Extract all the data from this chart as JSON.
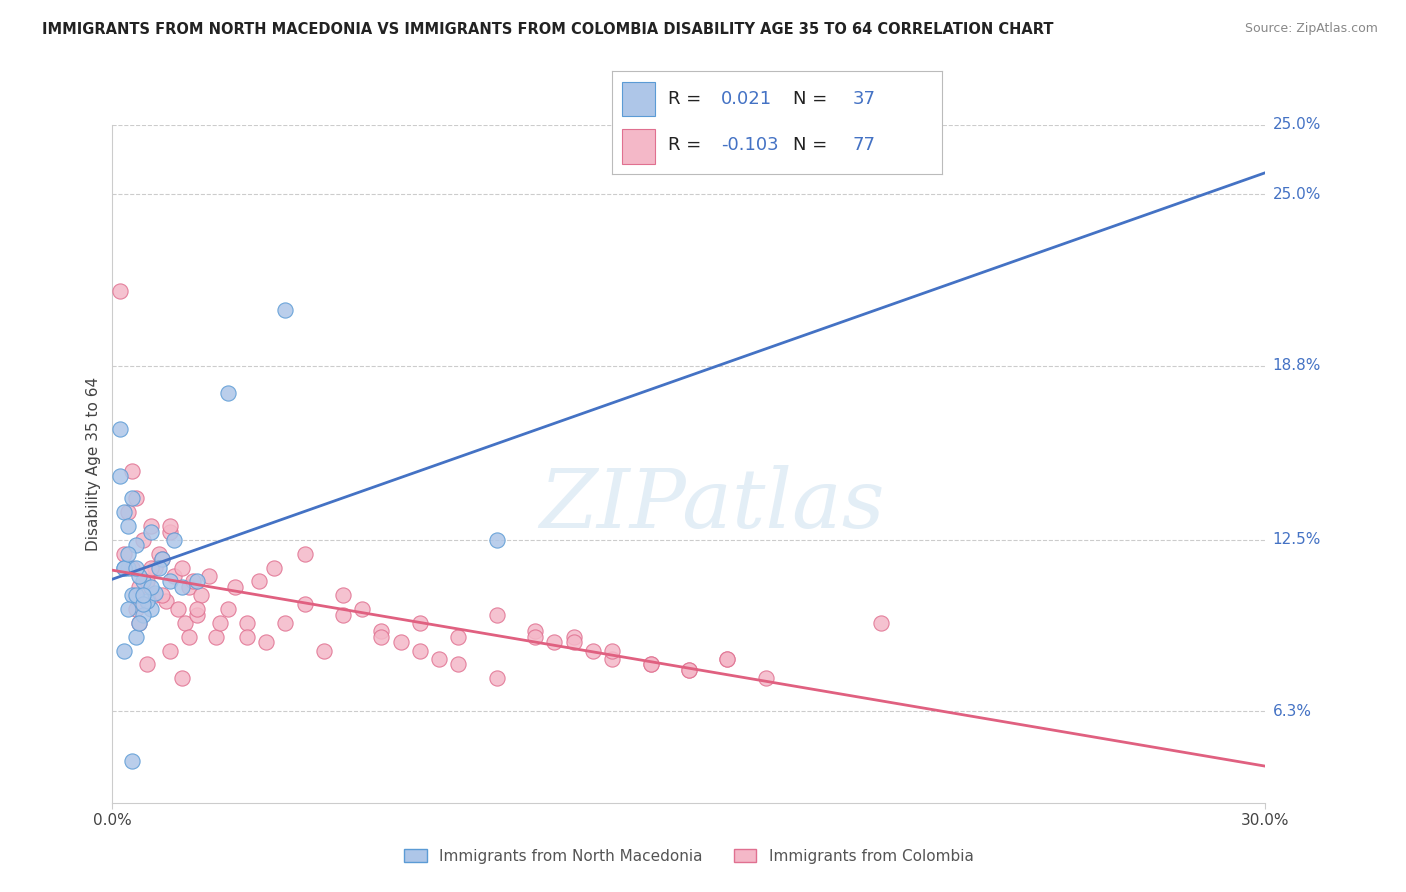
{
  "title": "IMMIGRANTS FROM NORTH MACEDONIA VS IMMIGRANTS FROM COLOMBIA DISABILITY AGE 35 TO 64 CORRELATION CHART",
  "source": "Source: ZipAtlas.com",
  "ylabel": "Disability Age 35 to 64",
  "xmin": 0.0,
  "xmax": 30.0,
  "ymin": 3.0,
  "ymax": 27.5,
  "ytick_vals": [
    6.3,
    12.5,
    18.8,
    25.0
  ],
  "ytick_labels": [
    "6.3%",
    "12.5%",
    "18.8%",
    "25.0%"
  ],
  "xtick_labels": [
    "0.0%",
    "30.0%"
  ],
  "blue_R": 0.021,
  "blue_N": 37,
  "pink_R": -0.103,
  "pink_N": 77,
  "blue_fill": "#aec6e8",
  "blue_edge": "#5b9bd5",
  "pink_fill": "#f4b8c8",
  "pink_edge": "#e07090",
  "blue_line_color": "#4472c4",
  "pink_line_color": "#e06080",
  "label_color": "#4472c4",
  "legend_label_blue": "Immigrants from North Macedonia",
  "legend_label_pink": "Immigrants from Colombia",
  "blue_x": [
    0.5,
    0.8,
    1.0,
    0.3,
    0.2,
    0.4,
    0.6,
    0.7,
    0.9,
    1.1,
    1.3,
    0.2,
    0.3,
    0.5,
    0.4,
    0.6,
    0.8,
    1.0,
    3.0,
    4.5,
    1.2,
    0.3,
    0.4,
    0.6,
    0.8,
    1.0,
    0.5,
    0.7,
    0.3,
    1.5,
    1.8,
    2.2,
    0.4,
    0.6,
    0.8,
    10.0,
    1.6
  ],
  "blue_y": [
    10.5,
    11.0,
    10.0,
    13.5,
    14.8,
    11.5,
    12.3,
    11.2,
    10.3,
    10.6,
    11.8,
    16.5,
    11.5,
    14.0,
    13.0,
    9.0,
    9.8,
    12.8,
    17.8,
    20.8,
    11.5,
    8.5,
    10.0,
    10.5,
    10.2,
    10.8,
    4.5,
    9.5,
    11.5,
    11.0,
    10.8,
    11.0,
    12.0,
    11.5,
    10.5,
    12.5,
    12.5
  ],
  "pink_x": [
    0.3,
    0.4,
    0.5,
    0.6,
    0.7,
    0.8,
    0.9,
    1.0,
    1.1,
    1.2,
    1.3,
    1.4,
    1.5,
    1.6,
    1.7,
    1.8,
    1.9,
    2.0,
    2.1,
    2.2,
    2.3,
    2.5,
    2.7,
    3.0,
    3.2,
    3.5,
    3.8,
    4.0,
    4.5,
    5.0,
    5.5,
    6.0,
    6.5,
    7.0,
    7.5,
    8.0,
    8.5,
    9.0,
    10.0,
    11.0,
    11.5,
    12.0,
    12.5,
    13.0,
    14.0,
    15.0,
    16.0,
    17.0,
    0.2,
    0.5,
    0.7,
    0.9,
    1.1,
    1.3,
    1.5,
    1.8,
    2.2,
    2.8,
    3.5,
    4.2,
    5.0,
    6.0,
    7.0,
    8.0,
    9.0,
    10.0,
    11.0,
    12.0,
    13.0,
    14.0,
    15.0,
    16.0,
    0.6,
    1.0,
    1.5,
    2.0,
    20.0
  ],
  "pink_y": [
    12.0,
    13.5,
    11.5,
    14.0,
    10.8,
    12.5,
    11.0,
    13.0,
    10.5,
    12.0,
    11.8,
    10.3,
    12.8,
    11.2,
    10.0,
    11.5,
    9.5,
    10.8,
    11.0,
    9.8,
    10.5,
    11.2,
    9.0,
    10.0,
    10.8,
    9.5,
    11.0,
    8.8,
    9.5,
    10.2,
    8.5,
    9.8,
    10.0,
    9.2,
    8.8,
    9.5,
    8.2,
    9.0,
    9.8,
    9.2,
    8.8,
    9.0,
    8.5,
    8.2,
    8.0,
    7.8,
    8.2,
    7.5,
    21.5,
    15.0,
    9.5,
    8.0,
    11.5,
    10.5,
    13.0,
    7.5,
    10.0,
    9.5,
    9.0,
    11.5,
    12.0,
    10.5,
    9.0,
    8.5,
    8.0,
    7.5,
    9.0,
    8.8,
    8.5,
    8.0,
    7.8,
    8.2,
    10.0,
    11.5,
    8.5,
    9.0,
    9.5
  ]
}
